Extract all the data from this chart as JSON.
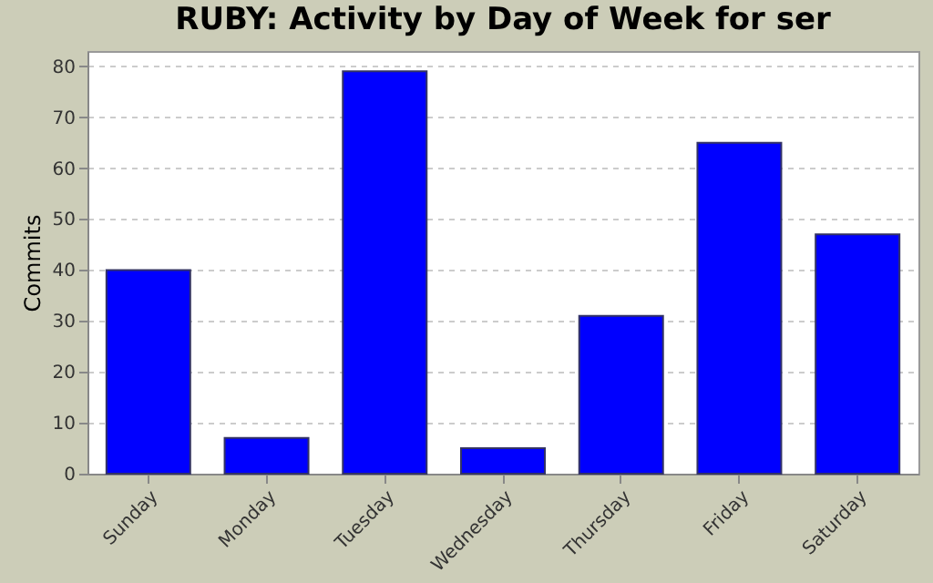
{
  "chart_data": {
    "type": "bar",
    "title": "RUBY: Activity by Day of Week for ser",
    "ylabel": "Commits",
    "categories": [
      "Sunday",
      "Monday",
      "Tuesday",
      "Wednesday",
      "Thursday",
      "Friday",
      "Saturday"
    ],
    "values": [
      40,
      7,
      79,
      5,
      31,
      65,
      47
    ],
    "color": "#0000ff",
    "ylim": [
      0,
      83
    ],
    "yticks": [
      0,
      10,
      20,
      30,
      40,
      50,
      60,
      70,
      80
    ],
    "grid": "y"
  }
}
